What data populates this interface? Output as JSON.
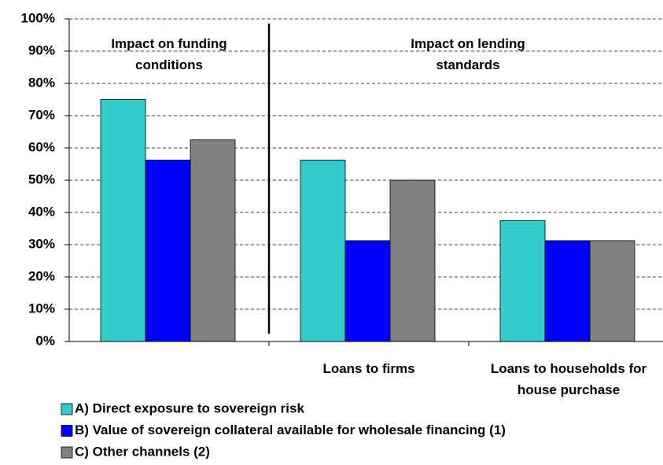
{
  "chart_data": {
    "type": "bar",
    "annotations": [
      "Impact on funding conditions",
      "Impact on lending standards"
    ],
    "categories": [
      null,
      "Loans to firms",
      "Loans to households for house purchase"
    ],
    "series": [
      {
        "name": "A) Direct exposure to sovereign risk",
        "color": "#33cccc",
        "values": [
          75,
          56.25,
          37.5
        ]
      },
      {
        "name": "B) Value of sovereign collateral available for wholesale financing (1)",
        "color": "#0000ff",
        "values": [
          56.25,
          31.25,
          31.25
        ]
      },
      {
        "name": "C) Other channels (2)",
        "color": "#808080",
        "values": [
          62.5,
          50,
          31.25
        ]
      }
    ],
    "ylim": [
      0,
      100
    ],
    "yticks": [
      {
        "value": 0,
        "label": "0%"
      },
      {
        "value": 10,
        "label": "10%"
      },
      {
        "value": 20,
        "label": "20%"
      },
      {
        "value": 30,
        "label": "30%"
      },
      {
        "value": 40,
        "label": "40%"
      },
      {
        "value": 50,
        "label": "50%"
      },
      {
        "value": 60,
        "label": "60%"
      },
      {
        "value": 70,
        "label": "70%"
      },
      {
        "value": 80,
        "label": "80%"
      },
      {
        "value": 90,
        "label": "90%"
      },
      {
        "value": 100,
        "label": "100%"
      }
    ],
    "grid": true
  }
}
